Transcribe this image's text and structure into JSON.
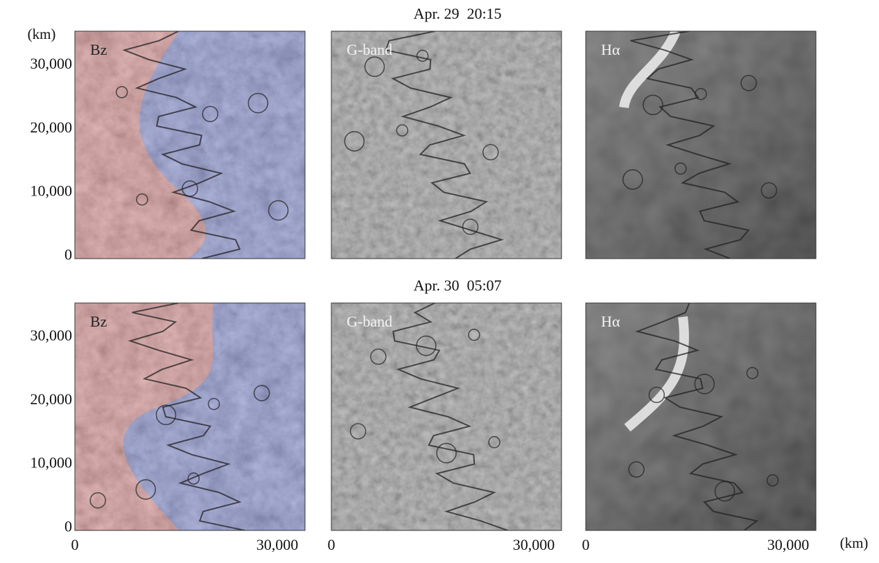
{
  "y_unit": "(km)",
  "x_unit": "(km)",
  "rows": [
    {
      "title": "Apr. 29  20:15",
      "yticks": [
        "30,000",
        "20,000",
        "10,000",
        "0"
      ],
      "panels": [
        {
          "label": "Bz"
        },
        {
          "label": "G-band"
        },
        {
          "label": "Hα"
        }
      ]
    },
    {
      "title": "Apr. 30  05:07",
      "yticks": [
        "30,000",
        "20,000",
        "10,000",
        "0"
      ],
      "panels": [
        {
          "label": "Bz"
        },
        {
          "label": "G-band"
        },
        {
          "label": "Hα"
        }
      ]
    }
  ],
  "x_ticks": [
    [
      "0",
      "30,000"
    ],
    [
      "0",
      "30,000"
    ],
    [
      "0",
      "30,000"
    ]
  ]
}
